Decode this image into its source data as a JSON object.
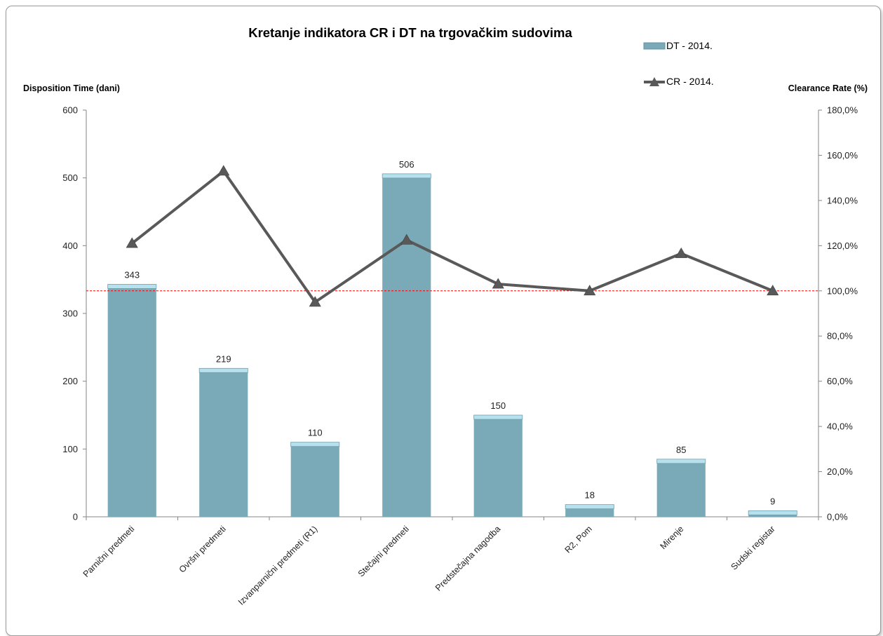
{
  "chart_data": {
    "type": "bar",
    "title": "Kretanje indikatora CR i DT na trgovačkim sudovima",
    "ylabel": "Disposition Time (dani)",
    "y2label": "Clearance Rate (%)",
    "ylim": [
      0,
      600
    ],
    "y2lim": [
      0,
      180
    ],
    "yticks": [
      "0",
      "100",
      "200",
      "300",
      "400",
      "500",
      "600"
    ],
    "y2ticks": [
      "0,0%",
      "20,0%",
      "40,0%",
      "60,0%",
      "80,0%",
      "100,0%",
      "120,0%",
      "140,0%",
      "160,0%",
      "180,0%"
    ],
    "categories": [
      "Parnični predmeti",
      "Ovršni predmeti",
      "Izvanparnični predmeti (R1)",
      "Stečajni predmeti",
      "Predstečajna nagodba",
      "R2, Pom",
      "Mirenje",
      "Sudski registar"
    ],
    "series": [
      {
        "name": "DT - 2014.",
        "type": "bar",
        "axis": "left",
        "values": [
          343,
          219,
          110,
          506,
          150,
          18,
          85,
          9
        ],
        "color": "#7aaab7"
      },
      {
        "name": "CR - 2014.",
        "type": "line",
        "axis": "right",
        "values": [
          121.0,
          153.0,
          95.0,
          122.5,
          103.0,
          100.0,
          116.5,
          100.0
        ],
        "color": "#595959"
      }
    ],
    "reference_line": {
      "value": 100,
      "axis": "right",
      "color": "#ff0000",
      "style": "dashed"
    },
    "legend_position": "top-right",
    "grid": false
  }
}
